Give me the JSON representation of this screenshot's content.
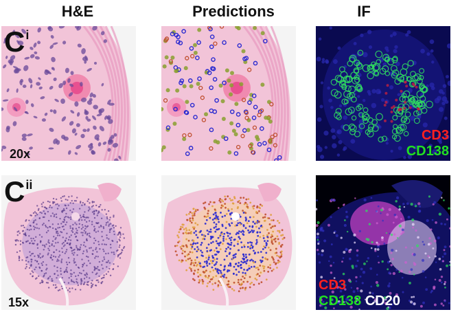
{
  "columns": [
    "H&E",
    "Predictions",
    "IF"
  ],
  "rows": [
    {
      "label": "C",
      "label_sup": "i",
      "magnification": "20x",
      "if_legend": [
        {
          "text": "CD3",
          "color": "#ff2020"
        },
        {
          "text": "CD138",
          "color": "#22e022"
        }
      ]
    },
    {
      "label": "C",
      "label_sup": "ii",
      "magnification": "15x",
      "if_legend": [
        {
          "text": "CD3",
          "color": "#ff2020"
        },
        {
          "text": "CD138",
          "color": "#22e022"
        },
        {
          "text": "CD20",
          "color": "#ffffff"
        }
      ]
    }
  ],
  "colors": {
    "he_background": "#f2c4d8",
    "he_nuclei": "#6a4a9a",
    "prediction_blue": "#2a2ad0",
    "prediction_green": "#8aa030",
    "prediction_orange": "#e0a040",
    "if_background": "#0a0a50",
    "if_green": "#30e060",
    "if_magenta": "#c040c0"
  }
}
